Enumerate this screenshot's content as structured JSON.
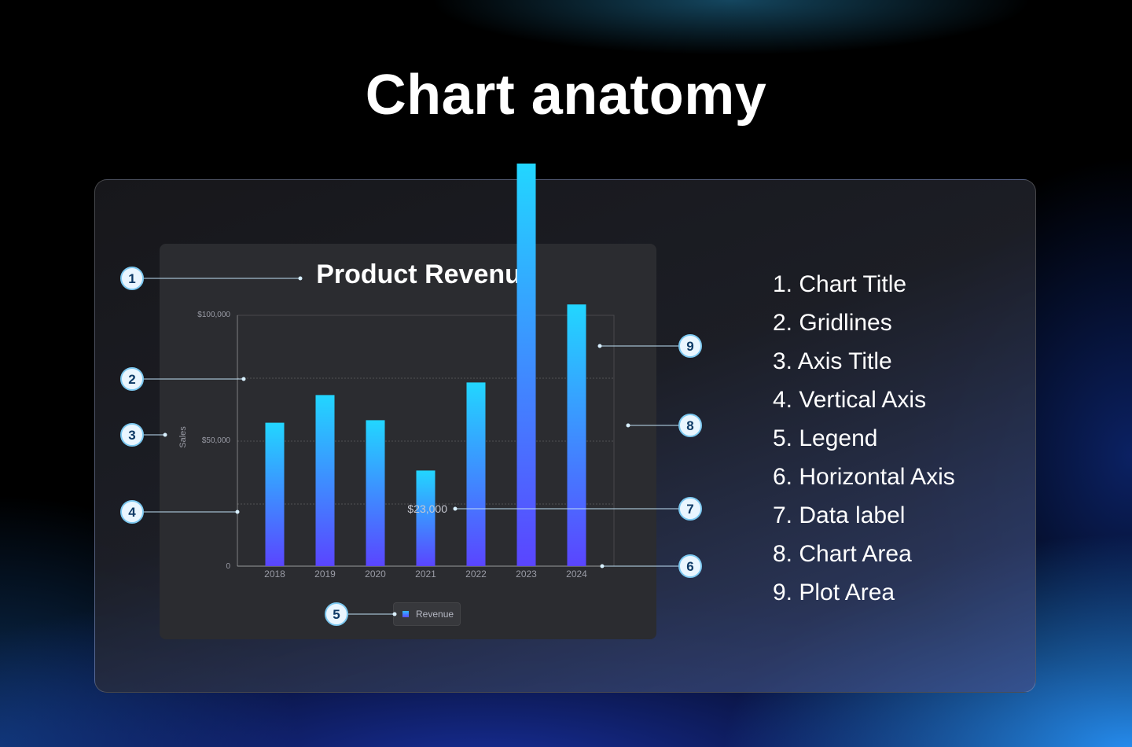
{
  "page": {
    "title": "Chart anatomy"
  },
  "chart_data": {
    "type": "bar",
    "title": "Product Revenue",
    "ylabel": "Sales",
    "xlabel": "",
    "categories": [
      "2018",
      "2019",
      "2020",
      "2021",
      "2022",
      "2023",
      "2024"
    ],
    "series": [
      {
        "name": "Revenue",
        "values": [
          57000,
          68000,
          58000,
          38000,
          73000,
          160000,
          104000
        ]
      }
    ],
    "y_tick_labels": [
      "0",
      "$50,000",
      "$100,000"
    ],
    "y_ticks": [
      0,
      50000,
      100000
    ],
    "ylim": [
      0,
      200000
    ],
    "data_label": "$23,000",
    "grid": true,
    "legend_position": "bottom",
    "colors": {
      "bar_top": "#22d6ff",
      "bar_bottom": "#5a45ff"
    }
  },
  "legend": {
    "label": "Revenue"
  },
  "annotations": {
    "badges": [
      "1",
      "2",
      "3",
      "4",
      "5",
      "6",
      "7",
      "8",
      "9"
    ],
    "items": [
      "1. Chart Title",
      "2. Gridlines",
      "3. Axis Title",
      "4. Vertical Axis",
      "5. Legend",
      "6. Horizontal Axis",
      "7. Data label",
      "8. Chart Area",
      "9. Plot Area"
    ]
  },
  "colors": {
    "accent": "#7cc8f0",
    "badge_fill": "#eaf6ff",
    "badge_text": "#0e3a66"
  }
}
